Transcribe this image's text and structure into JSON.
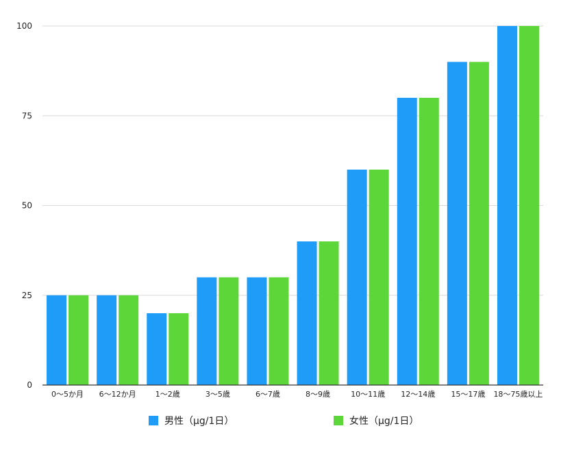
{
  "chart_data": {
    "type": "bar",
    "categories": [
      "0〜5か月",
      "6〜12か月",
      "1〜2歳",
      "3〜5歳",
      "6〜7歳",
      "8〜9歳",
      "10〜11歳",
      "12〜14歳",
      "15〜17歳",
      "18〜75歳以上"
    ],
    "series": [
      {
        "name": "男性（μg/1日）",
        "color": "#1f9cf7",
        "values": [
          25,
          25,
          20,
          30,
          30,
          40,
          60,
          80,
          90,
          100
        ]
      },
      {
        "name": "女性（μg/1日）",
        "color": "#5cd638",
        "values": [
          25,
          25,
          20,
          30,
          30,
          40,
          60,
          80,
          90,
          100
        ]
      }
    ],
    "title": "",
    "xlabel": "",
    "ylabel": "",
    "ylim": [
      0,
      100
    ],
    "yticks": [
      0,
      25,
      50,
      75,
      100
    ],
    "grid": true,
    "legend_position": "bottom"
  }
}
